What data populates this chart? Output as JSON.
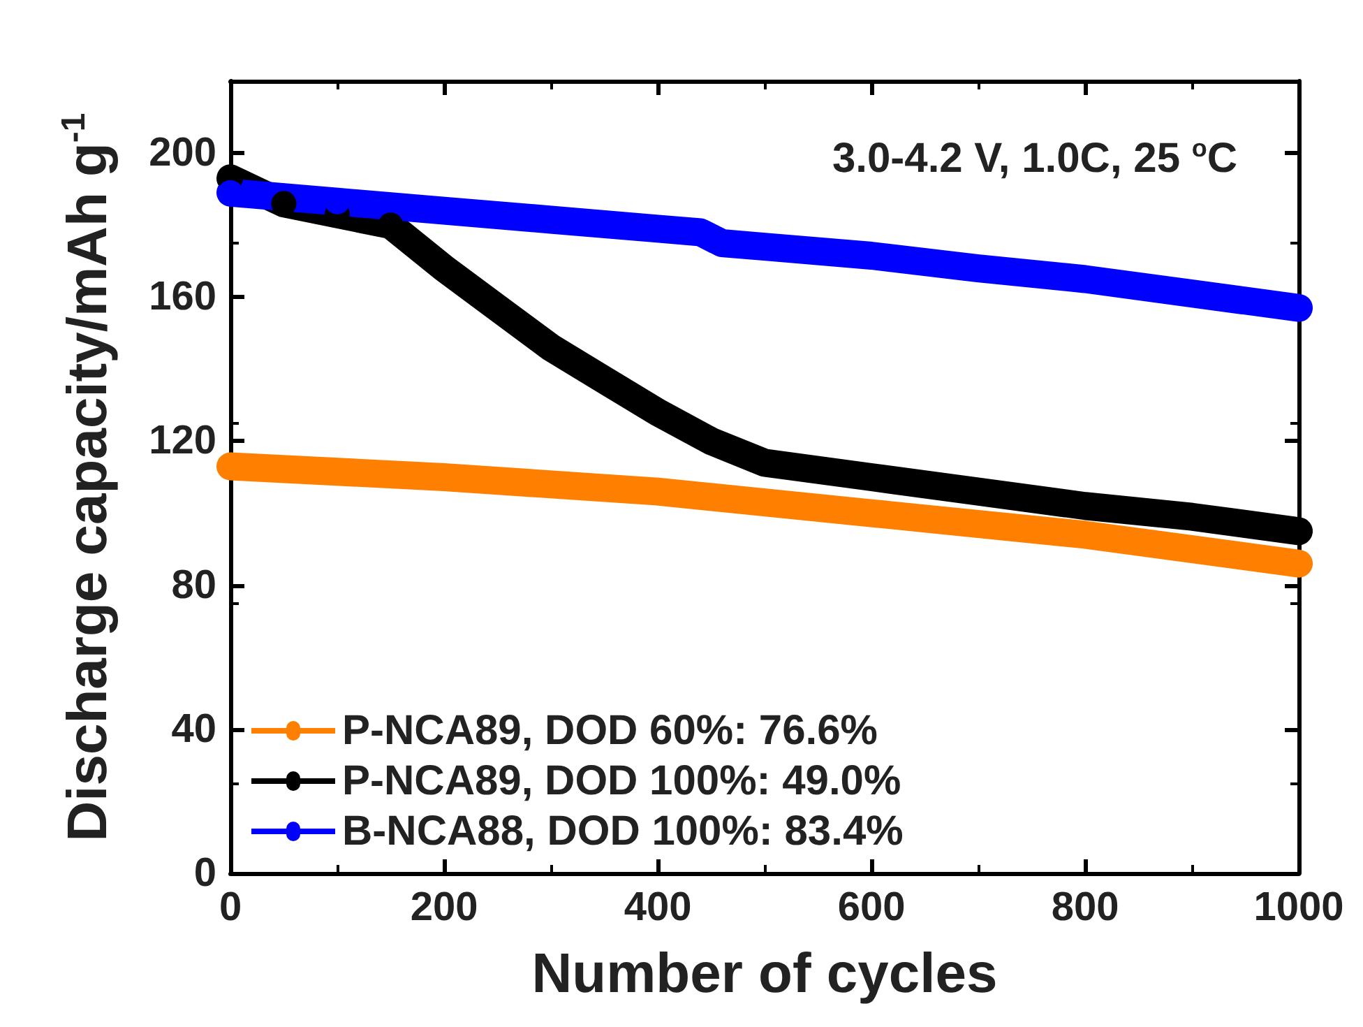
{
  "chart_data": {
    "type": "line",
    "xlabel": "Number of cycles",
    "ylabel": "Discharge capacity/mAh g$^{-1}$",
    "annotations": [
      "3.0-4.2 V, 1.0C, 25 $^{o}$C"
    ],
    "xlim": [
      0,
      1000
    ],
    "xticks": [
      0,
      200,
      400,
      600,
      800,
      1000
    ],
    "ylim": [
      0,
      220
    ],
    "yticks": [
      0,
      40,
      80,
      120,
      160,
      200
    ],
    "grid": false,
    "legend": "bottom left",
    "marker": "circle",
    "line_style": "solid",
    "series": [
      {
        "name": "P-NCA89, DOD 60%: 76.6%",
        "color": "#ff7f00",
        "x": [
          0,
          200,
          400,
          600,
          800,
          1000
        ],
        "values": [
          113,
          110,
          106,
          100,
          94,
          86
        ]
      },
      {
        "name": "P-NCA89, DOD 100%: 49.0%",
        "color": "#000000",
        "x": [
          0,
          50,
          100,
          150,
          200,
          250,
          300,
          350,
          400,
          450,
          500,
          600,
          700,
          800,
          900,
          1000
        ],
        "values": [
          193,
          186,
          183,
          180,
          168,
          157,
          146,
          137,
          128,
          120,
          114,
          110,
          106,
          102,
          99,
          95
        ]
      },
      {
        "name": "B-NCA88, DOD 100%: 83.4%",
        "color": "#0000ff",
        "x": [
          0,
          100,
          200,
          300,
          400,
          440,
          460,
          500,
          600,
          700,
          800,
          900,
          1000
        ],
        "values": [
          189,
          186.5,
          184,
          181.5,
          179,
          178,
          175,
          174,
          171.5,
          168,
          165,
          161,
          157
        ]
      }
    ]
  }
}
